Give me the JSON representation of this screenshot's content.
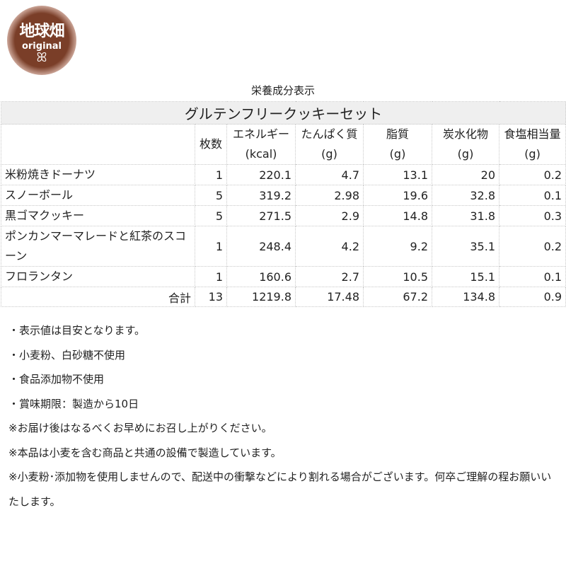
{
  "logo": {
    "text": "地球畑",
    "sub": "original"
  },
  "caption": "栄養成分表示",
  "table": {
    "title": "グルテンフリークッキーセット",
    "headers": [
      {
        "l1": "",
        "l2": ""
      },
      {
        "l1": "枚数",
        "l2": ""
      },
      {
        "l1": "エネルギー",
        "l2": "(kcal)"
      },
      {
        "l1": "たんぱく質",
        "l2": "(g)"
      },
      {
        "l1": "脂質",
        "l2": "(g)"
      },
      {
        "l1": "炭水化物",
        "l2": "(g)"
      },
      {
        "l1": "食塩相当量",
        "l2": "(g)"
      }
    ],
    "rows": [
      [
        "米粉焼きドーナツ",
        "1",
        "220.1",
        "4.7",
        "13.1",
        "20",
        "0.2"
      ],
      [
        "スノーボール",
        "5",
        "319.2",
        "2.98",
        "19.6",
        "32.8",
        "0.1"
      ],
      [
        "黒ゴマクッキー",
        "5",
        "271.5",
        "2.9",
        "14.8",
        "31.8",
        "0.3"
      ],
      [
        "ポンカンマーマレードと紅茶のスコーン",
        "1",
        "248.4",
        "4.2",
        "9.2",
        "35.1",
        "0.2"
      ],
      [
        "フロランタン",
        "1",
        "160.6",
        "2.7",
        "10.5",
        "15.1",
        "0.1"
      ],
      [
        "合計",
        "13",
        "1219.8",
        "17.48",
        "67.2",
        "134.8",
        "0.9"
      ]
    ]
  },
  "notes": [
    "・表示値は目安となります。",
    "・小麦粉、白砂糖不使用",
    "・食品添加物不使用",
    "・賞味期限：製造から10日",
    "※お届け後はなるべくお早めにお召し上がりください。",
    "※本品は小麦を含む商品と共通の設備で製造しています。",
    "※小麦粉･添加物を使用しませんので、配送中の衝撃などにより割れる場合がございます。何卒ご理解の程お願いいたします。"
  ]
}
